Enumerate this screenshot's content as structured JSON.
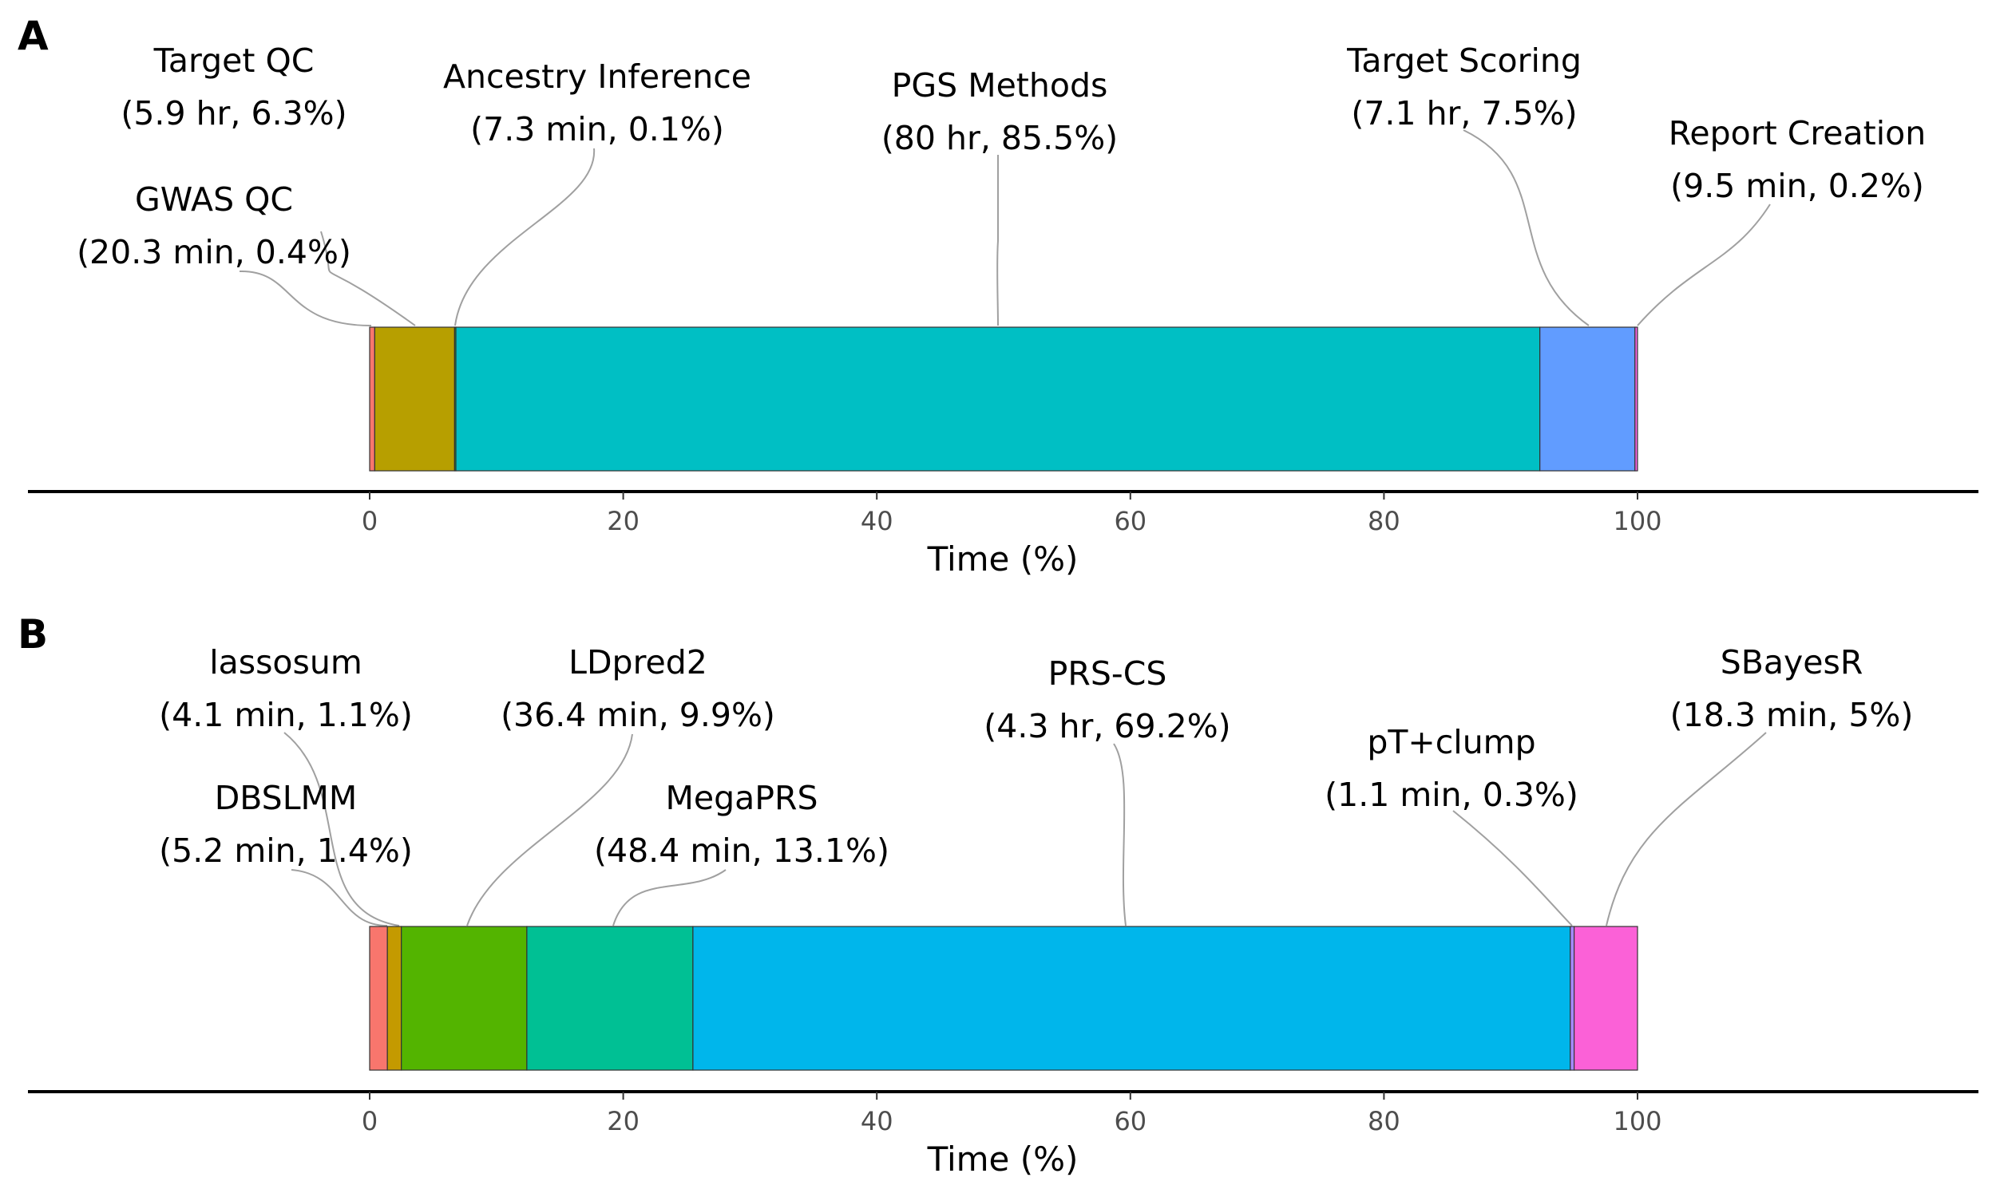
{
  "chart_data": [
    {
      "type": "bar",
      "orientation": "horizontal-stacked",
      "panel_label": "A",
      "xlabel": "Time (%)",
      "xlim": [
        0,
        100
      ],
      "xticks": [
        "0",
        "20",
        "40",
        "60",
        "80",
        "100"
      ],
      "grid": false,
      "segments": [
        {
          "name": "GWAS QC",
          "detail": "(20.3 min, 0.4%)",
          "value": 0.4,
          "color": "#F8766D"
        },
        {
          "name": "Target QC",
          "detail": "(5.9 hr, 6.3%)",
          "value": 6.3,
          "color": "#B79F00"
        },
        {
          "name": "Ancestry Inference",
          "detail": "(7.3 min, 0.1%)",
          "value": 0.1,
          "color": "#00BA38"
        },
        {
          "name": "PGS Methods",
          "detail": "(80 hr, 85.5%)",
          "value": 85.5,
          "color": "#00BFC4"
        },
        {
          "name": "Target Scoring",
          "detail": "(7.1 hr, 7.5%)",
          "value": 7.5,
          "color": "#619CFF"
        },
        {
          "name": "Report Creation",
          "detail": "(9.5 min, 0.2%)",
          "value": 0.2,
          "color": "#F564E3"
        }
      ]
    },
    {
      "type": "bar",
      "orientation": "horizontal-stacked",
      "panel_label": "B",
      "xlabel": "Time (%)",
      "xlim": [
        0,
        100
      ],
      "xticks": [
        "0",
        "20",
        "40",
        "60",
        "80",
        "100"
      ],
      "grid": false,
      "segments": [
        {
          "name": "DBSLMM",
          "detail": "(5.2 min, 1.4%)",
          "value": 1.4,
          "color": "#F8766D"
        },
        {
          "name": "lassosum",
          "detail": "(4.1 min, 1.1%)",
          "value": 1.1,
          "color": "#C49A00"
        },
        {
          "name": "LDpred2",
          "detail": "(36.4 min, 9.9%)",
          "value": 9.9,
          "color": "#53B400"
        },
        {
          "name": "MegaPRS",
          "detail": "(48.4 min, 13.1%)",
          "value": 13.1,
          "color": "#00C094"
        },
        {
          "name": "PRS-CS",
          "detail": "(4.3 hr, 69.2%)",
          "value": 69.2,
          "color": "#00B6EB"
        },
        {
          "name": "pT+clump",
          "detail": "(1.1 min, 0.3%)",
          "value": 0.3,
          "color": "#A58AFF"
        },
        {
          "name": "SBayesR",
          "detail": "(18.3 min, 5%)",
          "value": 5,
          "color": "#FB61D7"
        }
      ]
    }
  ]
}
